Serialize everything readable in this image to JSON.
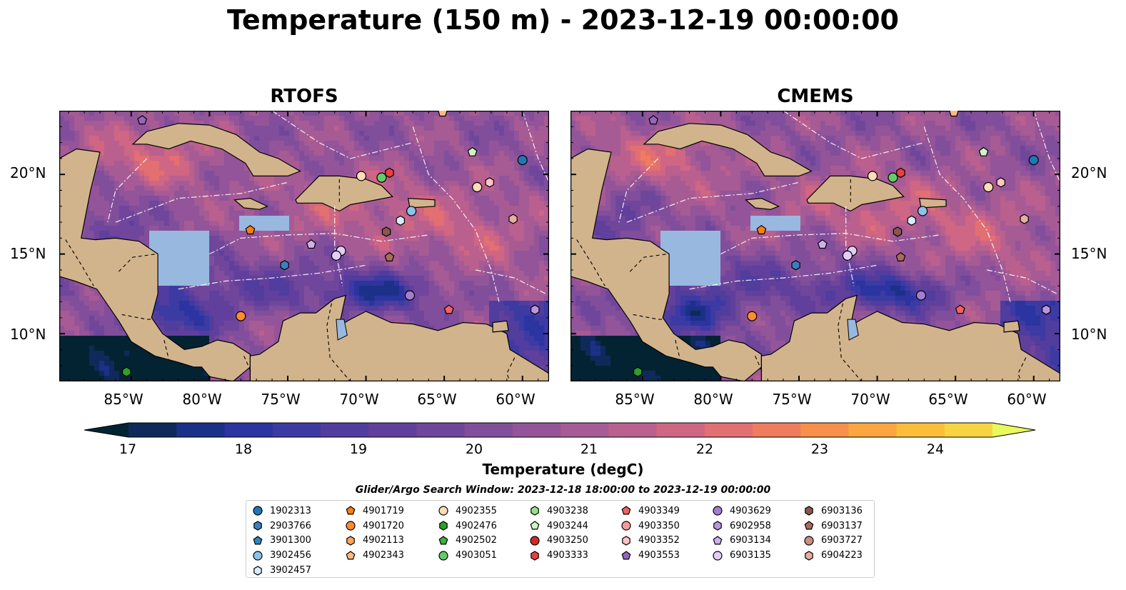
{
  "title": "Temperature (150 m) - 2023-12-19 00:00:00",
  "panels": [
    {
      "title": "RTOFS",
      "left": "83",
      "model": "rtofs"
    },
    {
      "title": "CMEMS",
      "left": "799",
      "model": "cmems"
    }
  ],
  "axes": {
    "lon_ticks": [
      "85°W",
      "80°W",
      "75°W",
      "70°W",
      "65°W",
      "60°W"
    ],
    "lat_ticks": [
      "20°N",
      "15°N",
      "10°N"
    ],
    "lon_range": [
      -89.6,
      -58.3
    ],
    "lat_range": [
      7.0,
      24.0
    ]
  },
  "colorbar": {
    "label": "Temperature (degC)",
    "min": 16.5,
    "max": 24.5,
    "step": 0.5,
    "ticks": [
      "17",
      "18",
      "19",
      "20",
      "21",
      "22",
      "23",
      "24"
    ],
    "colors": [
      "#032333",
      "#0f2a5a",
      "#1b3187",
      "#2b34a0",
      "#3c3aa3",
      "#503d9e",
      "#613f9c",
      "#6f469b",
      "#814e9b",
      "#935499",
      "#a65b95",
      "#ba608e",
      "#cf6683",
      "#e26f72",
      "#f07c5e",
      "#f88f4b",
      "#fba63e",
      "#fbbd3a",
      "#f6d540",
      "#e8fa5b"
    ]
  },
  "search_window": "Glider/Argo Search Window: 2023-12-18 18:00:00 to 2023-12-19 00:00:00",
  "legend": [
    [
      {
        "id": "1902313",
        "marker": "circle",
        "color": "#1f77b4"
      },
      {
        "id": "2903766",
        "marker": "hexagon",
        "color": "#3b7fc0"
      },
      {
        "id": "3901300",
        "marker": "pentagon",
        "color": "#2e86c1"
      },
      {
        "id": "3902456",
        "marker": "circle",
        "color": "#8fc1ea"
      },
      {
        "id": "3902457",
        "marker": "hexagon",
        "color": "#d8ecfb"
      }
    ],
    [
      {
        "id": "4901719",
        "marker": "pentagon",
        "color": "#ff7f0e"
      },
      {
        "id": "4901720",
        "marker": "circle",
        "color": "#ff8c2a"
      },
      {
        "id": "4902113",
        "marker": "hexagon",
        "color": "#ffa55c"
      },
      {
        "id": "4902343",
        "marker": "pentagon",
        "color": "#ffbb7e"
      }
    ],
    [
      {
        "id": "4902355",
        "marker": "circle",
        "color": "#ffdcb8"
      },
      {
        "id": "4902476",
        "marker": "hexagon",
        "color": "#2ca02c"
      },
      {
        "id": "4902502",
        "marker": "pentagon",
        "color": "#3cb33c"
      },
      {
        "id": "4903051",
        "marker": "circle",
        "color": "#66cc66"
      }
    ],
    [
      {
        "id": "4903238",
        "marker": "hexagon",
        "color": "#98df8a"
      },
      {
        "id": "4903244",
        "marker": "pentagon",
        "color": "#ccf5c4"
      },
      {
        "id": "4903250",
        "marker": "circle",
        "color": "#d62728"
      },
      {
        "id": "4903333",
        "marker": "hexagon",
        "color": "#e8413f"
      }
    ],
    [
      {
        "id": "4903349",
        "marker": "pentagon",
        "color": "#f06262"
      },
      {
        "id": "4903350",
        "marker": "circle",
        "color": "#f59a9a"
      },
      {
        "id": "4903352",
        "marker": "hexagon",
        "color": "#ffc4c2"
      },
      {
        "id": "4903553",
        "marker": "pentagon",
        "color": "#9467bd"
      }
    ],
    [
      {
        "id": "4903629",
        "marker": "circle",
        "color": "#a37ed0"
      },
      {
        "id": "6902958",
        "marker": "hexagon",
        "color": "#b996e0"
      },
      {
        "id": "6903134",
        "marker": "pentagon",
        "color": "#cfb2ec"
      },
      {
        "id": "6903135",
        "marker": "circle",
        "color": "#e3cdf7"
      }
    ],
    [
      {
        "id": "6903136",
        "marker": "hexagon",
        "color": "#8c564b"
      },
      {
        "id": "6903137",
        "marker": "pentagon",
        "color": "#a86c5f"
      },
      {
        "id": "6903727",
        "marker": "circle",
        "color": "#c98f82"
      },
      {
        "id": "6904223",
        "marker": "hexagon",
        "color": "#e8ada2"
      }
    ]
  ],
  "floats": [
    {
      "id": "1902313",
      "lon": -60.0,
      "lat": 20.9
    },
    {
      "id": "3902456",
      "lon": -67.1,
      "lat": 17.7
    },
    {
      "id": "3902457",
      "lon": -67.8,
      "lat": 17.1
    },
    {
      "id": "2903766",
      "lon": -75.2,
      "lat": 14.3
    },
    {
      "id": "4901719",
      "lon": -77.4,
      "lat": 16.5
    },
    {
      "id": "4901720",
      "lon": -78.0,
      "lat": 11.1
    },
    {
      "id": "4902355",
      "lon": -62.9,
      "lat": 19.2
    },
    {
      "id": "4902355b",
      "lon": -70.3,
      "lat": 19.9,
      "as": "4902355"
    },
    {
      "id": "4902343",
      "lon": -65.1,
      "lat": 23.9
    },
    {
      "id": "4902476",
      "lon": -85.3,
      "lat": 7.6
    },
    {
      "id": "4903051",
      "lon": -69.0,
      "lat": 19.8
    },
    {
      "id": "4903244",
      "lon": -63.2,
      "lat": 21.4
    },
    {
      "id": "4903333",
      "lon": -68.5,
      "lat": 20.1
    },
    {
      "id": "4903349",
      "lon": -64.7,
      "lat": 11.5
    },
    {
      "id": "4903352",
      "lon": -62.1,
      "lat": 19.5
    },
    {
      "id": "4903553",
      "lon": -84.3,
      "lat": 23.4
    },
    {
      "id": "4903629",
      "lon": -67.2,
      "lat": 12.4
    },
    {
      "id": "6902958",
      "lon": -59.2,
      "lat": 11.5
    },
    {
      "id": "6903134",
      "lon": -73.5,
      "lat": 15.6
    },
    {
      "id": "6903135",
      "lon": -71.6,
      "lat": 15.2
    },
    {
      "id": "6903135b",
      "lon": -71.9,
      "lat": 14.9,
      "as": "6903135"
    },
    {
      "id": "6903136",
      "lon": -68.7,
      "lat": 16.4
    },
    {
      "id": "6903137",
      "lon": -68.5,
      "lat": 14.8
    },
    {
      "id": "6904223",
      "lon": -60.6,
      "lat": 17.2
    }
  ]
}
